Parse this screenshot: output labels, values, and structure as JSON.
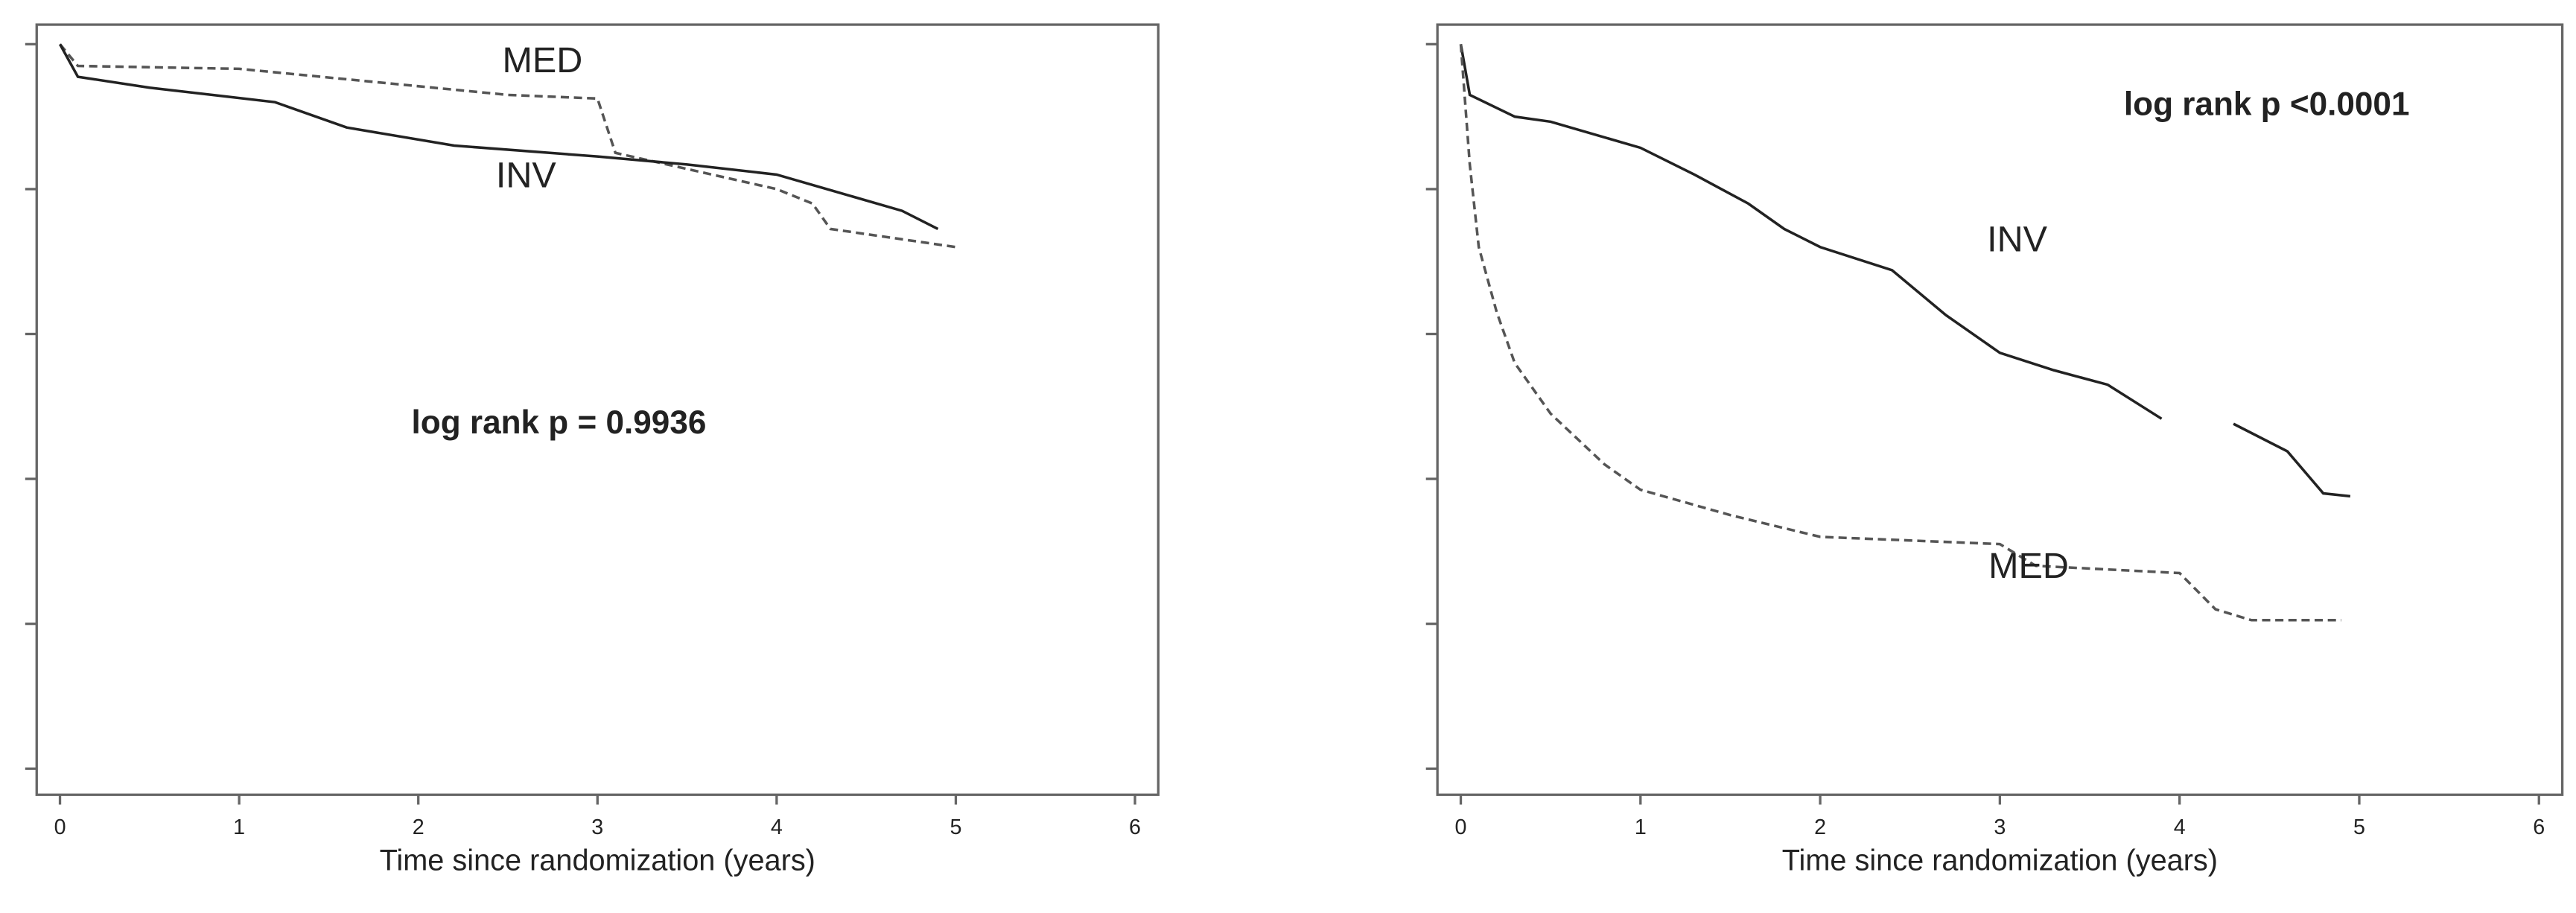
{
  "chart_data": [
    {
      "type": "line",
      "xlabel": "Time since randomization (years)",
      "annotations": [
        "log rank p = 0.9936"
      ],
      "xlim": [
        -0.13,
        6.13
      ],
      "xticks": [
        0,
        1,
        2,
        3,
        4,
        5,
        6
      ],
      "ylim": [
        -0.036,
        1.027
      ],
      "yticks": [
        0,
        0.2,
        0.4,
        0.6,
        0.8,
        1.0
      ],
      "ytick_labels": false,
      "series": [
        {
          "name": "MED",
          "color": "#555555",
          "dashed": true,
          "x": [
            0,
            0.1,
            1.0,
            2.5,
            3.0,
            3.1,
            4.0,
            4.2,
            4.3,
            5.0
          ],
          "values": [
            1.0,
            0.97,
            0.966,
            0.93,
            0.925,
            0.85,
            0.8,
            0.78,
            0.745,
            0.72
          ]
        },
        {
          "name": "INV",
          "color": "#222222",
          "dashed": false,
          "x": [
            0,
            0.1,
            0.5,
            1.2,
            1.6,
            2.2,
            3.0,
            3.5,
            4.0,
            4.7,
            4.9
          ],
          "values": [
            1.0,
            0.955,
            0.94,
            0.92,
            0.885,
            0.86,
            0.845,
            0.834,
            0.82,
            0.77,
            0.745
          ]
        }
      ]
    },
    {
      "type": "line",
      "xlabel": "Time since randomization (years)",
      "annotations": [
        "log rank p <0.0001"
      ],
      "xlim": [
        -0.13,
        6.13
      ],
      "xticks": [
        0,
        1,
        2,
        3,
        4,
        5,
        6
      ],
      "ylim": [
        -0.036,
        1.027
      ],
      "yticks": [
        0,
        0.2,
        0.4,
        0.6,
        0.8,
        1.0
      ],
      "ytick_labels": false,
      "series": [
        {
          "name": "INV",
          "color": "#222222",
          "dashed": false,
          "x": [
            0,
            0.05,
            0.3,
            0.5,
            1.0,
            1.3,
            1.6,
            1.8,
            2.0,
            2.4,
            2.7,
            3.0,
            3.3,
            3.6,
            3.9,
            4.1,
            4.3,
            4.6,
            4.8,
            4.95
          ],
          "values": [
            1.0,
            0.93,
            0.9,
            0.893,
            0.857,
            0.82,
            0.78,
            0.745,
            0.72,
            0.688,
            0.626,
            0.574,
            0.55,
            0.53,
            0.483,
            null,
            0.476,
            0.438,
            0.38,
            0.376
          ]
        },
        {
          "name": "MED",
          "color": "#555555",
          "dashed": true,
          "x": [
            0,
            0.05,
            0.1,
            0.2,
            0.3,
            0.5,
            0.8,
            1.0,
            1.5,
            2.0,
            3.0,
            3.2,
            4.0,
            4.2,
            4.4,
            4.9
          ],
          "values": [
            1.0,
            0.834,
            0.72,
            0.63,
            0.56,
            0.49,
            0.42,
            0.385,
            0.35,
            0.32,
            0.31,
            0.28,
            0.27,
            0.22,
            0.205,
            0.205
          ]
        }
      ]
    }
  ]
}
